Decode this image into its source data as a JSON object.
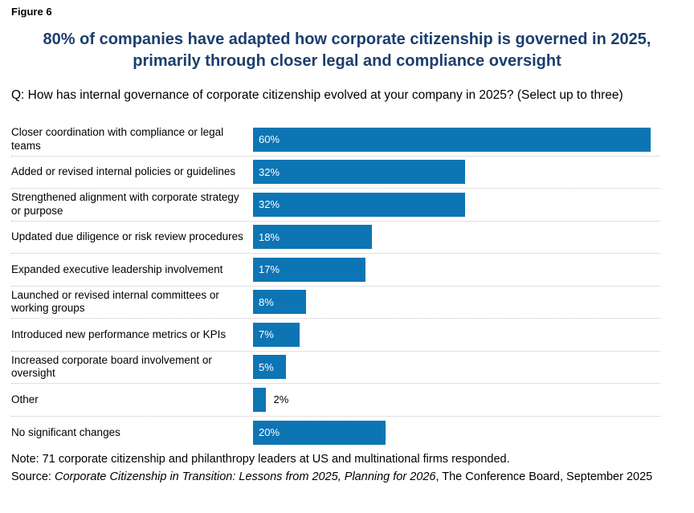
{
  "figure_label": "Figure 6",
  "title": "80% of companies have adapted how corporate citizenship is governed in 2025, primarily through closer legal and compliance oversight",
  "question": "Q: How has internal governance of corporate citizenship evolved at your company in 2025? (Select up to three)",
  "chart_data": {
    "type": "bar",
    "orientation": "horizontal",
    "categories": [
      "Closer coordination with compliance or legal teams",
      "Added or revised internal policies or guidelines",
      "Strengthened alignment with corporate strategy or purpose",
      "Updated due diligence or risk review procedures",
      "Expanded executive leadership involvement",
      "Launched or revised internal committees or working groups",
      "Introduced new performance metrics or KPIs",
      "Increased corporate board involvement or oversight",
      "Other",
      "No significant changes"
    ],
    "values": [
      60,
      32,
      32,
      18,
      17,
      8,
      7,
      5,
      2,
      20
    ],
    "value_labels": [
      "60%",
      "32%",
      "32%",
      "18%",
      "17%",
      "8%",
      "7%",
      "5%",
      "2%",
      "20%"
    ],
    "unit": "%",
    "xlim": [
      0,
      61.5
    ],
    "grid": "off",
    "legend": "none",
    "bar_color": "#0d75b4",
    "inside_label_color": "#ffffff",
    "outside_label_color": "#000000",
    "outside_label_threshold": 4,
    "row_separator": "dotted"
  },
  "note": "Note: 71 corporate citizenship and philanthropy leaders at US and multinational firms responded.",
  "source": {
    "prefix": "Source: ",
    "italic": "Corporate Citizenship in Transition: Lessons from 2025, Planning for 2026",
    "suffix": ", The Conference Board, September 2025"
  },
  "colors": {
    "title": "#1c3e6e",
    "bar": "#0d75b4",
    "body_text": "#000000",
    "separator": "#c3c3c3",
    "background": "#ffffff"
  }
}
